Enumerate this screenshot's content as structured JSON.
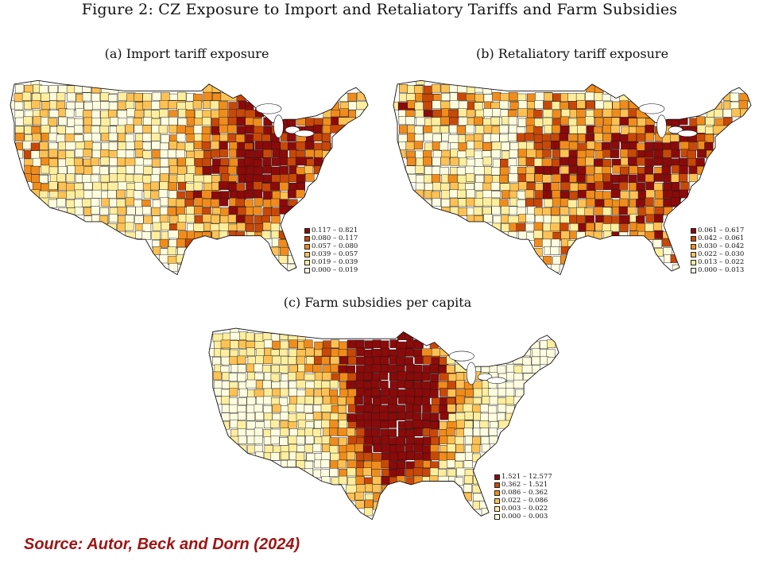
{
  "figure_title": "Figure 2: CZ Exposure to Import and Retaliatory Tariffs and Farm Subsidies",
  "source": "Source: Autor, Beck and Dorn (2024)",
  "palette": [
    "#fffde0",
    "#ffee9e",
    "#fdc154",
    "#f08c1c",
    "#c84808",
    "#8b0a0a"
  ],
  "panels": [
    {
      "id": "a",
      "caption": "(a) Import tariff exposure",
      "legend": [
        "0.117 – 0.821",
        "0.080 – 0.117",
        "0.057 – 0.080",
        "0.039 – 0.057",
        "0.019 – 0.039",
        "0.000 – 0.019"
      ],
      "pattern": "import"
    },
    {
      "id": "b",
      "caption": "(b) Retaliatory tariff exposure",
      "legend": [
        "0.061 – 0.617",
        "0.042 – 0.061",
        "0.030 – 0.042",
        "0.022 – 0.030",
        "0.013 – 0.022",
        "0.000 – 0.013"
      ],
      "pattern": "retaliatory"
    },
    {
      "id": "c",
      "caption": "(c) Farm subsidies per capita",
      "legend": [
        "1.521 – 12.577",
        "0.362 – 1.521",
        "0.086 – 0.362",
        "0.022 – 0.086",
        "0.003 – 0.022",
        "0.000 – 0.003"
      ],
      "pattern": "farm"
    }
  ]
}
